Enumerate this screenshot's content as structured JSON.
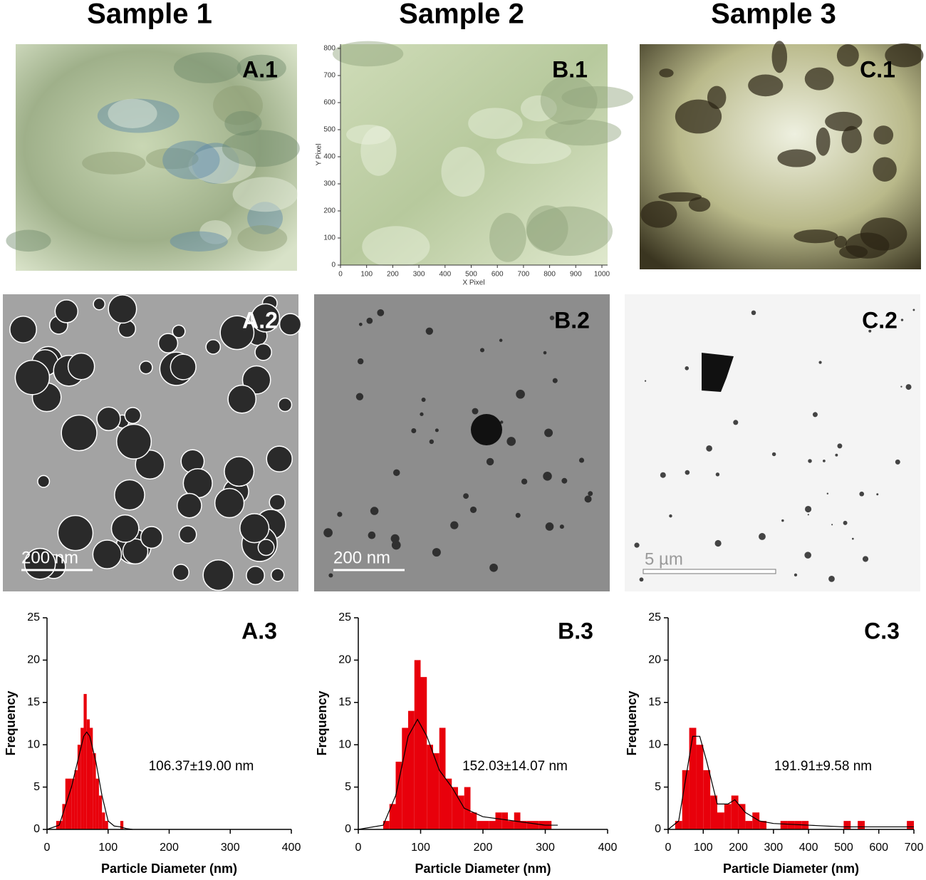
{
  "columns": [
    {
      "title": "Sample 1"
    },
    {
      "title": "Sample 2"
    },
    {
      "title": "Sample 3"
    }
  ],
  "optical_images": [
    {
      "label": "A.1"
    },
    {
      "label": "B.1",
      "x_label": "X Pixel",
      "y_label": "Y Pixel",
      "xlim": [
        0,
        1000
      ],
      "xticks": [
        0,
        100,
        200,
        300,
        400,
        500,
        600,
        700,
        800,
        900,
        1000
      ],
      "ylim": [
        0,
        800
      ],
      "yticks": [
        0,
        100,
        200,
        300,
        400,
        500,
        600,
        700,
        800
      ]
    },
    {
      "label": "C.1"
    }
  ],
  "tem_images": [
    {
      "label": "A.2",
      "scale_bar": "200 nm"
    },
    {
      "label": "B.2",
      "scale_bar": "200 nm"
    },
    {
      "label": "C.2",
      "scale_bar": "5 µm"
    }
  ],
  "chart_data": [
    {
      "type": "histogram",
      "panel_label": "A.3",
      "annotation": "106.37±19.00 nm",
      "x_label": "Particle Diameter (nm)",
      "y_label": "Frequency",
      "color": "#e8000b",
      "bins": [
        15,
        20,
        25,
        30,
        35,
        40,
        45,
        50,
        55,
        60,
        65,
        70,
        75,
        80,
        85,
        90,
        95,
        100,
        105,
        110,
        115,
        120,
        125
      ],
      "values": [
        1,
        1,
        3,
        6,
        6,
        6,
        7,
        10,
        12,
        16,
        13,
        12,
        9,
        6,
        4,
        2,
        1,
        0,
        0,
        0,
        0,
        1
      ],
      "fit": {
        "x": [
          0,
          20,
          40,
          50,
          60,
          65,
          70,
          80,
          90,
          100,
          110,
          120,
          130,
          140
        ],
        "y": [
          0,
          0.5,
          5,
          8,
          11,
          11.5,
          11,
          8,
          4,
          1,
          0.4,
          0.3,
          0.1,
          0
        ]
      },
      "xlim": [
        0,
        400
      ],
      "xticks": [
        0,
        100,
        200,
        300,
        400
      ],
      "ylim": [
        0,
        25
      ],
      "yticks": [
        0,
        5,
        10,
        15,
        20,
        25
      ]
    },
    {
      "type": "histogram",
      "panel_label": "B.3",
      "annotation": "152.03±14.07 nm",
      "x_label": "Particle Diameter (nm)",
      "y_label": "Frequency",
      "color": "#e8000b",
      "bins": [
        0,
        10,
        20,
        30,
        40,
        50,
        60,
        70,
        80,
        90,
        100,
        110,
        120,
        130,
        140,
        150,
        160,
        170,
        180,
        190,
        200,
        210,
        220,
        230,
        240,
        250,
        260,
        270,
        280,
        290,
        300,
        310
      ],
      "values": [
        0,
        0,
        0,
        0,
        1,
        3,
        8,
        12,
        14,
        20,
        18,
        10,
        9,
        12,
        6,
        5,
        4,
        5,
        2,
        1,
        1,
        1,
        2,
        2,
        1,
        2,
        1,
        1,
        1,
        1,
        1
      ],
      "fit": {
        "x": [
          0,
          40,
          60,
          80,
          95,
          110,
          130,
          150,
          170,
          200,
          250,
          300,
          320
        ],
        "y": [
          0,
          0.5,
          4,
          11,
          13,
          11,
          7,
          5,
          2.5,
          1.5,
          1,
          0.5,
          0.5
        ]
      },
      "xlim": [
        0,
        400
      ],
      "xticks": [
        0,
        100,
        200,
        300,
        400
      ],
      "ylim": [
        0,
        25
      ],
      "yticks": [
        0,
        5,
        10,
        15,
        20,
        25
      ]
    },
    {
      "type": "histogram",
      "panel_label": "C.3",
      "annotation": "191.91±9.58 nm",
      "x_label": "Particle Diameter (nm)",
      "y_label": "Frequency",
      "color": "#e8000b",
      "bins": [
        20,
        40,
        60,
        80,
        100,
        120,
        140,
        160,
        180,
        200,
        220,
        240,
        260,
        280,
        300,
        320,
        340,
        360,
        380,
        400,
        420,
        440,
        460,
        480,
        500,
        520,
        540,
        560,
        580,
        600,
        620,
        640,
        660,
        680,
        700,
        720
      ],
      "values": [
        1,
        7,
        12,
        10,
        7,
        4,
        2,
        3,
        4,
        3,
        1,
        2,
        1,
        0,
        0,
        1,
        1,
        1,
        1,
        0,
        0,
        0,
        0,
        0,
        1,
        0,
        1,
        0,
        0,
        0,
        0,
        0,
        0,
        1,
        0
      ],
      "fit": {
        "x": [
          0,
          30,
          50,
          70,
          90,
          110,
          140,
          170,
          190,
          220,
          260,
          300,
          400,
          500,
          600,
          700
        ],
        "y": [
          0,
          1,
          6,
          11,
          11,
          8,
          3,
          3,
          3.5,
          2,
          1,
          0.7,
          0.5,
          0.3,
          0.3,
          0.3
        ]
      },
      "xlim": [
        0,
        700
      ],
      "xticks": [
        0,
        100,
        200,
        300,
        400,
        500,
        600,
        700
      ],
      "ylim": [
        0,
        25
      ],
      "yticks": [
        0,
        5,
        10,
        15,
        20,
        25
      ]
    }
  ]
}
